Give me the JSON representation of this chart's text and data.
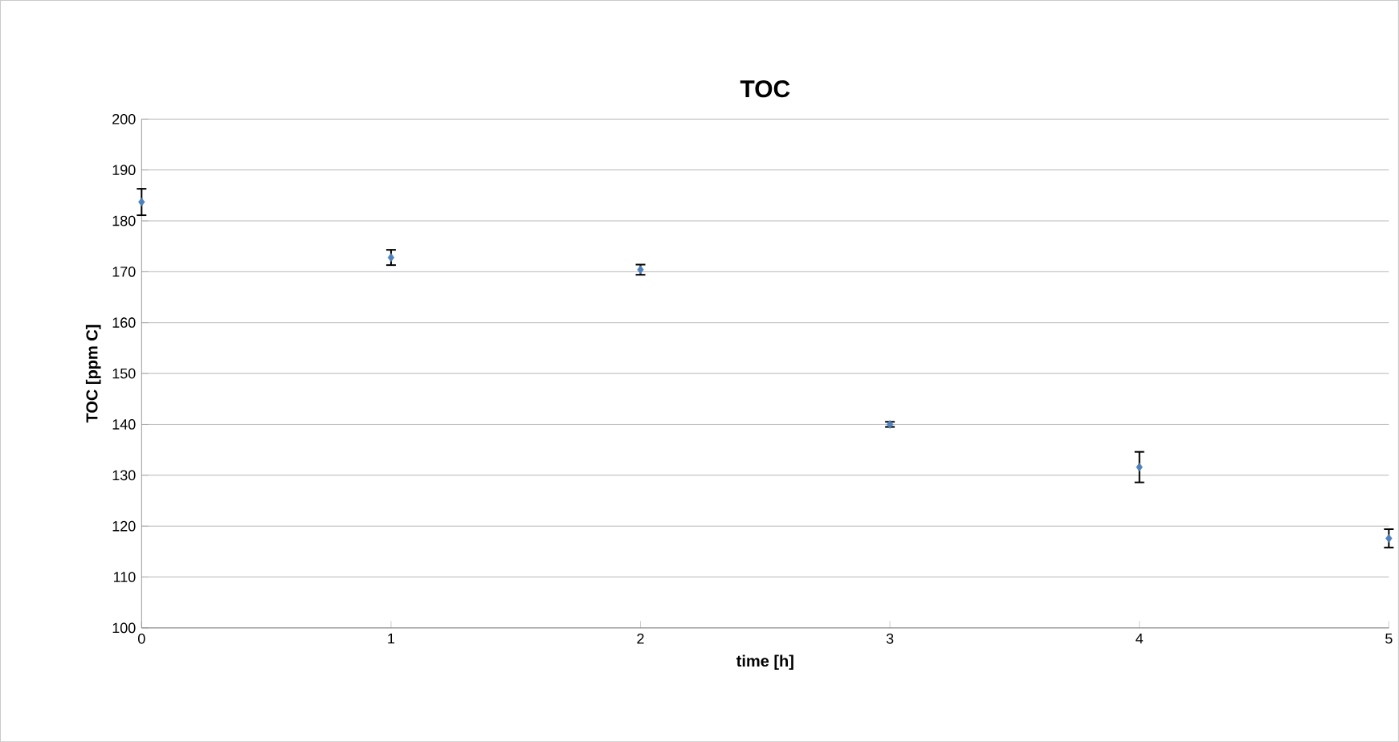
{
  "chart_data": {
    "type": "scatter",
    "title": "TOC",
    "xlabel": "time [h]",
    "ylabel": "TOC [ppm C]",
    "x": [
      0,
      1,
      2,
      3,
      4,
      5
    ],
    "values": [
      183.7,
      172.8,
      170.4,
      140,
      131.6,
      117.6
    ],
    "errors": [
      2.6,
      1.5,
      1,
      0.5,
      3,
      1.8
    ],
    "color": "#4f81bd",
    "marker": "diamond",
    "grid": "y",
    "xlim": [
      0,
      5
    ],
    "xticks": [
      0,
      1,
      2,
      3,
      4,
      5
    ],
    "ylim": [
      100,
      200
    ],
    "yticks": [
      100,
      110,
      120,
      130,
      140,
      150,
      160,
      170,
      180,
      190,
      200
    ]
  }
}
